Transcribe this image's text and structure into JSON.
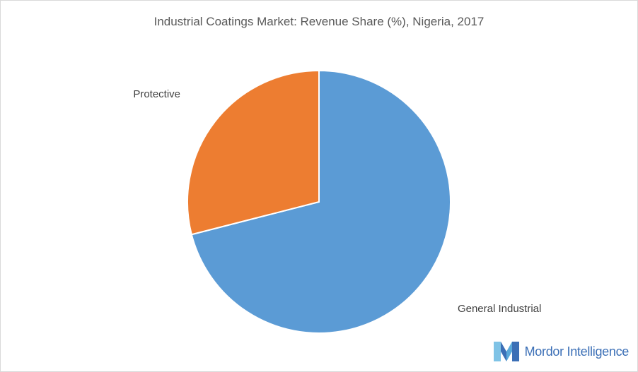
{
  "chart_data": {
    "type": "pie",
    "title": "Industrial Coatings Market: Revenue Share (%), Nigeria, 2017",
    "categories": [
      "General Industrial",
      "Protective"
    ],
    "values": [
      71,
      29
    ],
    "start_angle_deg": 0,
    "direction": "clockwise",
    "colors": [
      "#5b9bd5",
      "#ed7d31"
    ],
    "legend": "none"
  },
  "branding": {
    "logo_text": "Mordor Intelligence",
    "colors": {
      "primary": "#3b6fb6",
      "secondary": "#7fc3e6"
    }
  }
}
